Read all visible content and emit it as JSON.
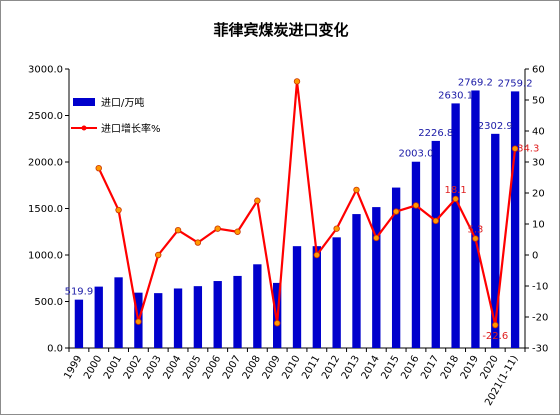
{
  "chart_data": {
    "type": "bar+line",
    "title": "菲律宾煤炭进口变化",
    "categories": [
      "1999",
      "2000",
      "2001",
      "2002",
      "2003",
      "2004",
      "2005",
      "2006",
      "2007",
      "2008",
      "2009",
      "2010",
      "2011",
      "2012",
      "2013",
      "2014",
      "2015",
      "2016",
      "2017",
      "2018",
      "2019",
      "2020",
      "2021(1-11)"
    ],
    "series": [
      {
        "name": "进口/万吨",
        "type": "bar",
        "axis": "left",
        "color": "#0000cc",
        "values": [
          519.9,
          660,
          760,
          595,
          590,
          640,
          665,
          720,
          775,
          900,
          700,
          1095,
          1095,
          1190,
          1440,
          1515,
          1725,
          2003.0,
          2226.8,
          2630.1,
          2769.2,
          2302.9,
          2759.2
        ]
      },
      {
        "name": "进口增长率%",
        "type": "line",
        "axis": "right",
        "color": "#ff0000",
        "values": [
          null,
          28,
          14.5,
          -21.5,
          0,
          8,
          4,
          8.5,
          7.5,
          17.5,
          -22,
          56,
          0,
          8.5,
          21,
          5.5,
          14,
          16,
          11,
          18.1,
          5.3,
          -22.6,
          34.3
        ]
      }
    ],
    "bar_labels": [
      {
        "index": 0,
        "text": "519.9"
      },
      {
        "index": 17,
        "text": "2003.0"
      },
      {
        "index": 18,
        "text": "2226.8"
      },
      {
        "index": 19,
        "text": "2630.1"
      },
      {
        "index": 20,
        "text": "2769.2"
      },
      {
        "index": 21,
        "text": "2302.9"
      },
      {
        "index": 22,
        "text": "2759.2"
      }
    ],
    "line_labels": [
      {
        "index": 19,
        "text": "18.1"
      },
      {
        "index": 20,
        "text": "5.3"
      },
      {
        "index": 21,
        "text": "-22.6"
      },
      {
        "index": 22,
        "text": "34.3"
      }
    ],
    "y_left": {
      "min": 0,
      "max": 3000,
      "step": 500,
      "ticks": [
        "0.0",
        "500.0",
        "1000.0",
        "1500.0",
        "2000.0",
        "2500.0",
        "3000.0"
      ]
    },
    "y_right": {
      "min": -30,
      "max": 60,
      "step": 10,
      "ticks": [
        "-30",
        "-20",
        "-10",
        "0",
        "10",
        "20",
        "30",
        "40",
        "50",
        "60"
      ]
    },
    "grid": false,
    "legend_placement": "top-left"
  }
}
